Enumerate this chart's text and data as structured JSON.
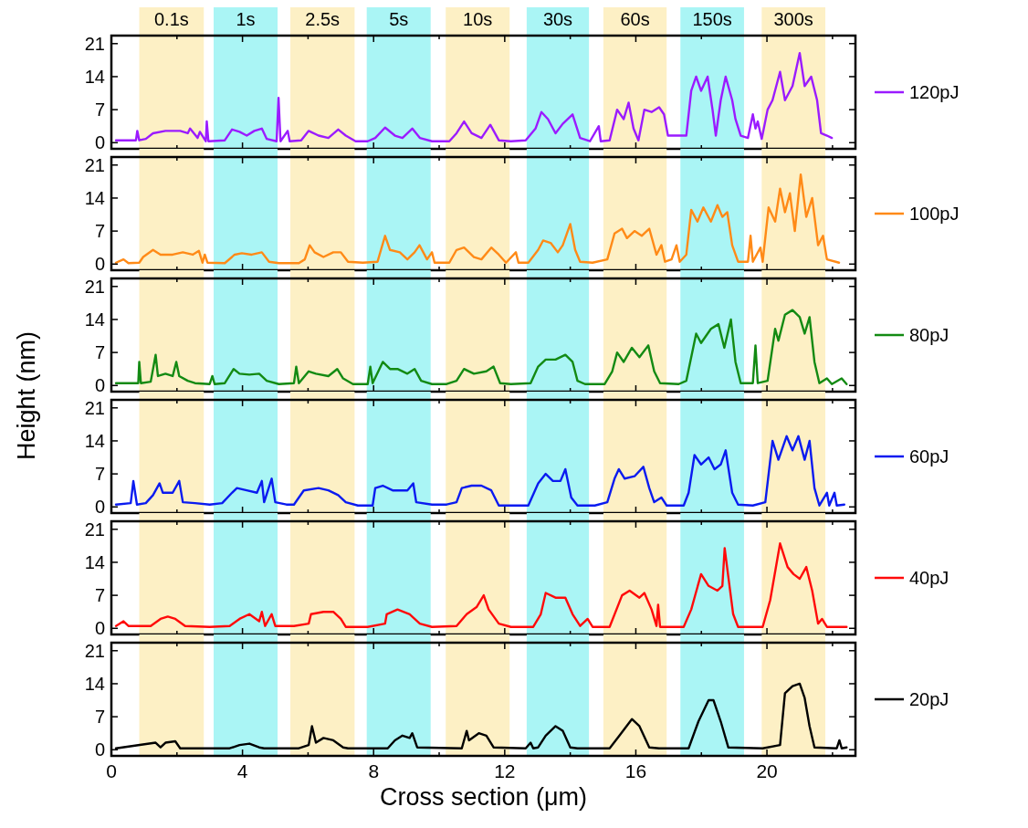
{
  "chart_data": [
    {
      "type": "line",
      "xlim": [
        0,
        22.7
      ],
      "xticks": [
        0,
        {
          "value": 2,
          "label": null
        },
        4,
        {
          "value": 6,
          "label": null
        },
        8,
        {
          "value": 10,
          "label": null
        },
        12,
        {
          "value": 14,
          "label": null
        },
        16,
        {
          "value": 18,
          "label": null
        },
        20,
        {
          "value": 22,
          "label": null
        }
      ],
      "ylim": [
        -1.3,
        22.7
      ],
      "yticks": [
        0,
        7,
        14,
        21
      ],
      "tick_labels": "y",
      "legend": "right",
      "bands": [
        {
          "axis": "x",
          "from": 0.85,
          "to": 2.82,
          "label": "0.1s",
          "color": "#fdf0c5"
        },
        {
          "axis": "x",
          "from": 3.12,
          "to": 5.07,
          "label": "1s",
          "color": "#aaf5f5"
        },
        {
          "axis": "x",
          "from": 5.46,
          "to": 7.42,
          "label": "2.5s",
          "color": "#fdf0c5"
        },
        {
          "axis": "x",
          "from": 7.79,
          "to": 9.74,
          "label": "5s",
          "color": "#aaf5f5"
        },
        {
          "axis": "x",
          "from": 10.2,
          "to": 12.15,
          "label": "10s",
          "color": "#fdf0c5"
        },
        {
          "axis": "x",
          "from": 12.67,
          "to": 14.57,
          "label": "30s",
          "color": "#aaf5f5"
        },
        {
          "axis": "x",
          "from": 15.01,
          "to": 16.94,
          "label": "60s",
          "color": "#fdf0c5"
        },
        {
          "axis": "x",
          "from": 17.36,
          "to": 19.3,
          "label": "150s",
          "color": "#aaf5f5"
        },
        {
          "axis": "x",
          "from": 19.84,
          "to": 21.78,
          "label": "300s",
          "color": "#fdf0c5"
        }
      ],
      "series": [
        {
          "name": "120pJ",
          "color": "#9b1bff",
          "x": [
            0.14,
            0.75,
            0.79,
            0.85,
            1.05,
            1.27,
            1.65,
            2.1,
            2.33,
            2.4,
            2.63,
            2.7,
            2.88,
            2.91,
            2.96,
            3.46,
            3.68,
            3.91,
            4.13,
            4.36,
            4.59,
            4.74,
            5.04,
            5.1,
            5.16,
            5.38,
            5.44,
            5.79,
            6.02,
            6.32,
            6.62,
            6.92,
            7.15,
            7.45,
            7.82,
            8.05,
            8.35,
            8.65,
            8.88,
            9.18,
            9.41,
            9.78,
            10.31,
            10.53,
            10.76,
            10.99,
            11.29,
            11.56,
            11.82,
            12.19,
            12.64,
            12.94,
            13.12,
            13.32,
            13.55,
            13.77,
            14.07,
            14.3,
            14.6,
            14.87,
            14.93,
            15.2,
            15.43,
            15.63,
            15.78,
            15.93,
            16.08,
            16.26,
            16.48,
            16.71,
            16.86,
            16.98,
            17.31,
            17.54,
            17.69,
            17.84,
            17.99,
            18.19,
            18.34,
            18.44,
            18.59,
            18.74,
            18.94,
            19.04,
            19.2,
            19.42,
            19.57,
            19.65,
            19.72,
            19.84,
            20.02,
            20.17,
            20.4,
            20.55,
            20.78,
            21.0,
            21.15,
            21.35,
            21.53,
            21.65,
            21.83,
            21.98
          ],
          "values": [
            0.5,
            0.5,
            2.5,
            0.5,
            0.8,
            2,
            2.5,
            2.5,
            2,
            3,
            1,
            2.3,
            0.3,
            4.5,
            0.3,
            0.5,
            2.8,
            2.3,
            1.5,
            2.5,
            3,
            0.8,
            0.3,
            9.5,
            0.3,
            2.5,
            0.3,
            0.5,
            2.5,
            1.5,
            1,
            2.8,
            1.5,
            0.3,
            0.3,
            1,
            3.2,
            1.5,
            1,
            3,
            1,
            0.3,
            0.3,
            2,
            4.5,
            2,
            1,
            3.8,
            0.5,
            0.3,
            0.5,
            3,
            6.5,
            5,
            2,
            4,
            6,
            1,
            0.3,
            3.5,
            0.3,
            0.5,
            7,
            5,
            8.5,
            3,
            0.5,
            7,
            6.5,
            7.5,
            6,
            1.5,
            1.5,
            1.5,
            11,
            14,
            11,
            14,
            7,
            1.5,
            9,
            14,
            9,
            5,
            1.5,
            1,
            6,
            3,
            4.5,
            0.8,
            7,
            9,
            15,
            9,
            12,
            19,
            12,
            14,
            9,
            2,
            1.5,
            1
          ]
        }
      ]
    },
    {
      "type": "line",
      "xlim": [
        0,
        22.7
      ],
      "xticks": [
        0,
        {
          "value": 2,
          "label": null
        },
        4,
        {
          "value": 6,
          "label": null
        },
        8,
        {
          "value": 10,
          "label": null
        },
        12,
        {
          "value": 14,
          "label": null
        },
        16,
        {
          "value": 18,
          "label": null
        },
        20,
        {
          "value": 22,
          "label": null
        }
      ],
      "ylim": [
        -1.3,
        22.7
      ],
      "yticks": [
        0,
        7,
        14,
        21
      ],
      "tick_labels": "y",
      "legend": "right",
      "bands": [
        {
          "axis": "x",
          "from": 0.85,
          "to": 2.82,
          "color": "#fdf0c5"
        },
        {
          "axis": "x",
          "from": 3.12,
          "to": 5.07,
          "color": "#aaf5f5"
        },
        {
          "axis": "x",
          "from": 5.46,
          "to": 7.42,
          "color": "#fdf0c5"
        },
        {
          "axis": "x",
          "from": 7.79,
          "to": 9.74,
          "color": "#aaf5f5"
        },
        {
          "axis": "x",
          "from": 10.2,
          "to": 12.15,
          "color": "#fdf0c5"
        },
        {
          "axis": "x",
          "from": 12.67,
          "to": 14.57,
          "color": "#aaf5f5"
        },
        {
          "axis": "x",
          "from": 15.01,
          "to": 16.94,
          "color": "#fdf0c5"
        },
        {
          "axis": "x",
          "from": 17.36,
          "to": 19.3,
          "color": "#aaf5f5"
        },
        {
          "axis": "x",
          "from": 19.84,
          "to": 21.78,
          "color": "#fdf0c5"
        }
      ],
      "series": [
        {
          "name": "100pJ",
          "color": "#ff8a17",
          "x": [
            0.14,
            0.37,
            0.52,
            0.85,
            0.97,
            1.27,
            1.5,
            1.87,
            2.18,
            2.48,
            2.67,
            2.78,
            2.85,
            2.93,
            3.46,
            3.76,
            3.98,
            4.28,
            4.59,
            4.81,
            5.11,
            5.72,
            5.9,
            6.05,
            6.2,
            6.47,
            6.77,
            7.0,
            7.22,
            7.67,
            8.12,
            8.35,
            8.5,
            8.8,
            9.03,
            9.25,
            9.4,
            9.63,
            9.78,
            9.86,
            10.31,
            10.53,
            10.76,
            11.06,
            11.29,
            11.59,
            11.82,
            12.04,
            12.34,
            12.42,
            12.72,
            13.02,
            13.17,
            13.4,
            13.62,
            13.77,
            14.0,
            14.15,
            14.3,
            14.68,
            15.13,
            15.35,
            15.58,
            15.73,
            15.96,
            16.18,
            16.41,
            16.63,
            16.78,
            16.89,
            17.09,
            17.24,
            17.34,
            17.54,
            17.69,
            17.88,
            18.06,
            18.29,
            18.49,
            18.64,
            18.79,
            18.94,
            19.12,
            19.42,
            19.5,
            19.57,
            19.8,
            19.87,
            20.05,
            20.25,
            20.4,
            20.55,
            20.7,
            20.85,
            21.03,
            21.2,
            21.38,
            21.56,
            21.71,
            21.83,
            22.2
          ],
          "values": [
            0.3,
            1,
            0.2,
            0.3,
            1.5,
            3,
            2,
            2,
            2.5,
            2,
            2.8,
            0.3,
            2,
            0.3,
            0.2,
            2,
            2.3,
            2,
            2.5,
            0.5,
            0.2,
            0.2,
            1,
            4,
            2.5,
            1.5,
            2.5,
            2.5,
            0.5,
            0.3,
            0.5,
            6,
            3,
            2.5,
            1,
            2.5,
            4,
            1,
            2.5,
            0.3,
            0.3,
            3,
            3.5,
            1.5,
            1,
            3.5,
            2,
            0.3,
            2.5,
            0.3,
            0.3,
            3,
            5,
            4.5,
            2.5,
            4,
            8.5,
            3,
            0.5,
            0.3,
            1,
            6.5,
            7.5,
            5.5,
            7,
            6,
            7.5,
            2,
            4,
            0.5,
            1,
            4,
            0.5,
            2,
            11.5,
            9,
            12,
            9,
            12.5,
            10,
            11,
            4,
            0.5,
            0.5,
            6,
            0.5,
            3.5,
            0.5,
            12,
            9,
            16,
            11,
            15,
            7,
            19,
            10,
            14,
            4,
            6,
            1,
            0.3
          ]
        }
      ]
    },
    {
      "type": "line",
      "xlim": [
        0,
        22.7
      ],
      "xticks": [
        0,
        {
          "value": 2,
          "label": null
        },
        4,
        {
          "value": 6,
          "label": null
        },
        8,
        {
          "value": 10,
          "label": null
        },
        12,
        {
          "value": 14,
          "label": null
        },
        16,
        {
          "value": 18,
          "label": null
        },
        20,
        {
          "value": 22,
          "label": null
        }
      ],
      "ylim": [
        -1.3,
        22.7
      ],
      "yticks": [
        0,
        7,
        14,
        21
      ],
      "tick_labels": "y",
      "legend": "right",
      "bands": [
        {
          "axis": "x",
          "from": 0.85,
          "to": 2.82,
          "color": "#fdf0c5"
        },
        {
          "axis": "x",
          "from": 3.12,
          "to": 5.07,
          "color": "#aaf5f5"
        },
        {
          "axis": "x",
          "from": 5.46,
          "to": 7.42,
          "color": "#fdf0c5"
        },
        {
          "axis": "x",
          "from": 7.79,
          "to": 9.74,
          "color": "#aaf5f5"
        },
        {
          "axis": "x",
          "from": 10.2,
          "to": 12.15,
          "color": "#fdf0c5"
        },
        {
          "axis": "x",
          "from": 12.67,
          "to": 14.57,
          "color": "#aaf5f5"
        },
        {
          "axis": "x",
          "from": 15.01,
          "to": 16.94,
          "color": "#fdf0c5"
        },
        {
          "axis": "x",
          "from": 17.36,
          "to": 19.3,
          "color": "#aaf5f5"
        },
        {
          "axis": "x",
          "from": 19.84,
          "to": 21.78,
          "color": "#fdf0c5"
        }
      ],
      "series": [
        {
          "name": "80pJ",
          "color": "#138a13",
          "x": [
            0.14,
            0.82,
            0.85,
            0.9,
            1.2,
            1.35,
            1.42,
            1.65,
            1.87,
            1.98,
            2.07,
            2.33,
            2.55,
            3.0,
            3.08,
            3.15,
            3.46,
            3.73,
            3.91,
            4.21,
            4.51,
            4.74,
            5.11,
            5.57,
            5.64,
            5.72,
            6.02,
            6.24,
            6.62,
            6.89,
            7.07,
            7.37,
            7.82,
            7.9,
            7.97,
            8.28,
            8.5,
            8.73,
            9.03,
            9.25,
            9.45,
            9.78,
            10.23,
            10.53,
            10.76,
            11.06,
            11.44,
            11.66,
            11.86,
            12.19,
            12.79,
            13.02,
            13.25,
            13.55,
            13.85,
            14.07,
            14.22,
            14.45,
            15.05,
            15.28,
            15.43,
            15.63,
            15.88,
            16.11,
            16.38,
            16.56,
            16.74,
            17.31,
            17.54,
            17.84,
            17.99,
            18.29,
            18.52,
            18.7,
            18.9,
            19.04,
            19.2,
            19.57,
            19.65,
            19.72,
            20.02,
            20.25,
            20.35,
            20.55,
            20.78,
            21.0,
            21.15,
            21.3,
            21.45,
            21.6,
            21.83,
            21.98,
            22.28,
            22.43
          ],
          "values": [
            0.5,
            0.5,
            5,
            0.5,
            0.8,
            6.5,
            2,
            2.5,
            2,
            5,
            2,
            1,
            0.5,
            0.3,
            2,
            0.3,
            0.5,
            3.5,
            2.5,
            2.3,
            2.5,
            1,
            0.3,
            0.5,
            4,
            0.5,
            3,
            2.5,
            2,
            3.5,
            1.5,
            0.3,
            0.3,
            4,
            0.5,
            5,
            3.5,
            3.5,
            2.5,
            3.5,
            1,
            0.3,
            0.3,
            1,
            3.5,
            2.5,
            3,
            4,
            0.5,
            0.3,
            0.5,
            4,
            5.5,
            5.5,
            6.5,
            5,
            1,
            0.3,
            0.3,
            3,
            7,
            5,
            8,
            6,
            8.5,
            3,
            0.5,
            0.3,
            1,
            11,
            9,
            12,
            13,
            8,
            14,
            5,
            0.5,
            0.5,
            8.5,
            0.5,
            1,
            12,
            9.5,
            15,
            16,
            14.5,
            11,
            14.5,
            5,
            0.5,
            1.5,
            0.3,
            1.5,
            0.3
          ]
        }
      ]
    },
    {
      "type": "line",
      "xlim": [
        0,
        22.7
      ],
      "xticks": [
        0,
        {
          "value": 2,
          "label": null
        },
        4,
        {
          "value": 6,
          "label": null
        },
        8,
        {
          "value": 10,
          "label": null
        },
        12,
        {
          "value": 14,
          "label": null
        },
        16,
        {
          "value": 18,
          "label": null
        },
        20,
        {
          "value": 22,
          "label": null
        }
      ],
      "ylim": [
        -1.3,
        22.7
      ],
      "yticks": [
        0,
        7,
        14,
        21
      ],
      "tick_labels": "y",
      "legend": "right",
      "ylabel": "Height (nm)",
      "bands": [
        {
          "axis": "x",
          "from": 0.85,
          "to": 2.82,
          "color": "#fdf0c5"
        },
        {
          "axis": "x",
          "from": 3.12,
          "to": 5.07,
          "color": "#aaf5f5"
        },
        {
          "axis": "x",
          "from": 5.46,
          "to": 7.42,
          "color": "#fdf0c5"
        },
        {
          "axis": "x",
          "from": 7.79,
          "to": 9.74,
          "color": "#aaf5f5"
        },
        {
          "axis": "x",
          "from": 10.2,
          "to": 12.15,
          "color": "#fdf0c5"
        },
        {
          "axis": "x",
          "from": 12.67,
          "to": 14.57,
          "color": "#aaf5f5"
        },
        {
          "axis": "x",
          "from": 15.01,
          "to": 16.94,
          "color": "#fdf0c5"
        },
        {
          "axis": "x",
          "from": 17.36,
          "to": 19.3,
          "color": "#aaf5f5"
        },
        {
          "axis": "x",
          "from": 19.84,
          "to": 21.78,
          "color": "#fdf0c5"
        }
      ],
      "series": [
        {
          "name": "60pJ",
          "color": "#0a1bf0",
          "x": [
            0.14,
            0.59,
            0.67,
            0.78,
            1.05,
            1.27,
            1.47,
            1.57,
            1.87,
            2.07,
            2.18,
            2.55,
            3.0,
            3.38,
            3.68,
            3.83,
            4.13,
            4.44,
            4.59,
            4.66,
            4.89,
            5.0,
            5.34,
            5.57,
            5.87,
            6.32,
            6.62,
            6.92,
            7.15,
            7.52,
            7.97,
            8.05,
            8.28,
            8.58,
            9.03,
            9.21,
            9.3,
            9.78,
            10.23,
            10.53,
            10.69,
            10.99,
            11.29,
            11.59,
            11.82,
            12.34,
            12.72,
            13.02,
            13.25,
            13.47,
            13.7,
            13.85,
            14.03,
            14.22,
            14.75,
            15.13,
            15.35,
            15.48,
            15.66,
            15.96,
            16.23,
            16.41,
            16.56,
            16.78,
            16.94,
            17.46,
            17.61,
            17.79,
            17.99,
            18.22,
            18.4,
            18.59,
            18.74,
            18.94,
            19.12,
            19.57,
            19.95,
            20.17,
            20.35,
            20.6,
            20.78,
            20.96,
            21.15,
            21.3,
            21.45,
            21.6,
            21.83,
            21.9,
            22.06,
            22.13,
            22.36
          ],
          "values": [
            0.5,
            0.8,
            5.5,
            0.5,
            0.8,
            2.5,
            5,
            3,
            3,
            5.5,
            1,
            0.8,
            0.5,
            0.8,
            3,
            4,
            3.5,
            3,
            5.5,
            1,
            6,
            1,
            0.5,
            0.5,
            3.5,
            4,
            3.5,
            2.5,
            1,
            0.3,
            0.3,
            4,
            4.5,
            3.5,
            3.5,
            5,
            1,
            0.5,
            0.5,
            1,
            4,
            4.5,
            4.5,
            3.5,
            0.3,
            0.3,
            0.3,
            5,
            7,
            5.5,
            5.5,
            8,
            2,
            0.3,
            0.3,
            1,
            6,
            8,
            6,
            6.5,
            8.5,
            4,
            1,
            2,
            0.3,
            0.3,
            3,
            11,
            9,
            10.5,
            8,
            9,
            12,
            3,
            0.5,
            0.3,
            1,
            14,
            10,
            15,
            12,
            15,
            10,
            14,
            4,
            0.3,
            3,
            0.3,
            3,
            0.3,
            0.5
          ]
        }
      ]
    },
    {
      "type": "line",
      "xlim": [
        0,
        22.7
      ],
      "xticks": [
        0,
        {
          "value": 2,
          "label": null
        },
        4,
        {
          "value": 6,
          "label": null
        },
        8,
        {
          "value": 10,
          "label": null
        },
        12,
        {
          "value": 14,
          "label": null
        },
        16,
        {
          "value": 18,
          "label": null
        },
        20,
        {
          "value": 22,
          "label": null
        }
      ],
      "ylim": [
        -1.3,
        22.7
      ],
      "yticks": [
        0,
        7,
        14,
        21
      ],
      "tick_labels": "y",
      "legend": "right",
      "bands": [
        {
          "axis": "x",
          "from": 0.85,
          "to": 2.82,
          "color": "#fdf0c5"
        },
        {
          "axis": "x",
          "from": 3.12,
          "to": 5.07,
          "color": "#aaf5f5"
        },
        {
          "axis": "x",
          "from": 5.46,
          "to": 7.42,
          "color": "#fdf0c5"
        },
        {
          "axis": "x",
          "from": 7.79,
          "to": 9.74,
          "color": "#aaf5f5"
        },
        {
          "axis": "x",
          "from": 10.2,
          "to": 12.15,
          "color": "#fdf0c5"
        },
        {
          "axis": "x",
          "from": 12.67,
          "to": 14.57,
          "color": "#aaf5f5"
        },
        {
          "axis": "x",
          "from": 15.01,
          "to": 16.94,
          "color": "#fdf0c5"
        },
        {
          "axis": "x",
          "from": 17.36,
          "to": 19.3,
          "color": "#aaf5f5"
        },
        {
          "axis": "x",
          "from": 19.84,
          "to": 21.78,
          "color": "#fdf0c5"
        }
      ],
      "series": [
        {
          "name": "40pJ",
          "color": "#ff0a0a",
          "x": [
            0.14,
            0.37,
            0.52,
            1.2,
            1.5,
            1.72,
            1.95,
            2.25,
            3.0,
            3.61,
            3.91,
            4.21,
            4.51,
            4.59,
            4.69,
            4.89,
            5.0,
            5.57,
            6.02,
            6.09,
            6.47,
            6.77,
            7.0,
            7.15,
            7.82,
            8.35,
            8.4,
            8.73,
            9.1,
            9.41,
            9.78,
            10.53,
            10.84,
            11.14,
            11.36,
            11.51,
            11.82,
            12.19,
            12.87,
            13.1,
            13.25,
            13.55,
            13.85,
            14.07,
            14.3,
            14.53,
            14.68,
            15.2,
            15.58,
            15.81,
            16.11,
            16.26,
            16.48,
            16.63,
            16.68,
            16.74,
            17.46,
            17.69,
            17.99,
            18.22,
            18.49,
            18.64,
            18.71,
            18.82,
            18.97,
            19.12,
            19.87,
            20.1,
            20.4,
            20.63,
            20.81,
            21.0,
            21.2,
            21.38,
            21.56,
            21.68,
            21.83,
            22.43
          ],
          "values": [
            0.5,
            1.5,
            0.5,
            0.5,
            2,
            2.5,
            2,
            0.5,
            0.3,
            0.5,
            2,
            3,
            1.5,
            3.5,
            0.5,
            3,
            0.5,
            0.5,
            1,
            3,
            3.5,
            3.5,
            2,
            0.3,
            0.3,
            1,
            3,
            4,
            3,
            1,
            0.3,
            0.5,
            3,
            4.5,
            7,
            4,
            1,
            0.3,
            0.3,
            3,
            7.5,
            6.5,
            6.5,
            3,
            0.5,
            2,
            0.3,
            0.3,
            7,
            8,
            6.5,
            7.5,
            4,
            0.5,
            5,
            0.3,
            0.3,
            4,
            11.5,
            9,
            8,
            9,
            17,
            11,
            3,
            0.3,
            0.3,
            6,
            18,
            13,
            11.5,
            10.5,
            13,
            8,
            1,
            2,
            0.3,
            0.3
          ]
        }
      ]
    },
    {
      "type": "line",
      "xlim": [
        0,
        22.7
      ],
      "xticks": [
        0,
        {
          "value": 2,
          "label": null
        },
        4,
        {
          "value": 6,
          "label": null
        },
        8,
        {
          "value": 10,
          "label": null
        },
        12,
        {
          "value": 14,
          "label": null
        },
        16,
        {
          "value": 18,
          "label": null
        },
        20,
        {
          "value": 22,
          "label": null
        }
      ],
      "ylim": [
        -1.3,
        22.7
      ],
      "yticks": [
        0,
        7,
        14,
        21
      ],
      "legend": "right",
      "xlabel": "Cross section (μm)",
      "bands": [
        {
          "axis": "x",
          "from": 0.85,
          "to": 2.82,
          "color": "#fdf0c5"
        },
        {
          "axis": "x",
          "from": 3.12,
          "to": 5.07,
          "color": "#aaf5f5"
        },
        {
          "axis": "x",
          "from": 5.46,
          "to": 7.42,
          "color": "#fdf0c5"
        },
        {
          "axis": "x",
          "from": 7.79,
          "to": 9.74,
          "color": "#aaf5f5"
        },
        {
          "axis": "x",
          "from": 10.2,
          "to": 12.15,
          "color": "#fdf0c5"
        },
        {
          "axis": "x",
          "from": 12.67,
          "to": 14.57,
          "color": "#aaf5f5"
        },
        {
          "axis": "x",
          "from": 15.01,
          "to": 16.94,
          "color": "#fdf0c5"
        },
        {
          "axis": "x",
          "from": 17.36,
          "to": 19.3,
          "color": "#aaf5f5"
        },
        {
          "axis": "x",
          "from": 19.84,
          "to": 21.78,
          "color": "#fdf0c5"
        }
      ],
      "series": [
        {
          "name": "20pJ",
          "color": "#000000",
          "x": [
            0.14,
            1.35,
            1.5,
            1.65,
            1.95,
            2.1,
            3.61,
            3.91,
            4.21,
            4.51,
            4.66,
            5.72,
            6.02,
            6.12,
            6.24,
            6.47,
            6.77,
            7.07,
            7.22,
            8.43,
            8.65,
            8.88,
            9.1,
            9.18,
            9.33,
            10.69,
            10.84,
            10.91,
            11.21,
            11.44,
            11.66,
            12.64,
            12.79,
            12.87,
            13.02,
            13.25,
            13.55,
            13.77,
            14.0,
            14.22,
            15.2,
            15.5,
            15.88,
            16.11,
            16.41,
            16.71,
            17.61,
            17.91,
            18.22,
            18.37,
            18.59,
            18.82,
            19.87,
            20.4,
            20.55,
            20.78,
            21.0,
            21.15,
            21.3,
            21.45,
            22.13,
            22.21,
            22.28,
            22.43
          ],
          "values": [
            0.3,
            1.5,
            0.5,
            1.5,
            1.8,
            0.3,
            0.3,
            1,
            1.3,
            0.5,
            0.3,
            0.3,
            1,
            5,
            1.5,
            2.5,
            2,
            0.5,
            0.3,
            0.3,
            2,
            3,
            2.5,
            3.5,
            0.5,
            0.3,
            4,
            2,
            3.5,
            3,
            0.5,
            0.3,
            1.5,
            0.3,
            0.5,
            3,
            5,
            4,
            0.5,
            0.3,
            0.3,
            3,
            6.5,
            5,
            0.5,
            0.3,
            0.3,
            6,
            10.5,
            10.5,
            6,
            0.5,
            0.3,
            1,
            12,
            13.5,
            14,
            11,
            5,
            0.5,
            0.3,
            2,
            0.3,
            0.5
          ]
        }
      ]
    }
  ]
}
